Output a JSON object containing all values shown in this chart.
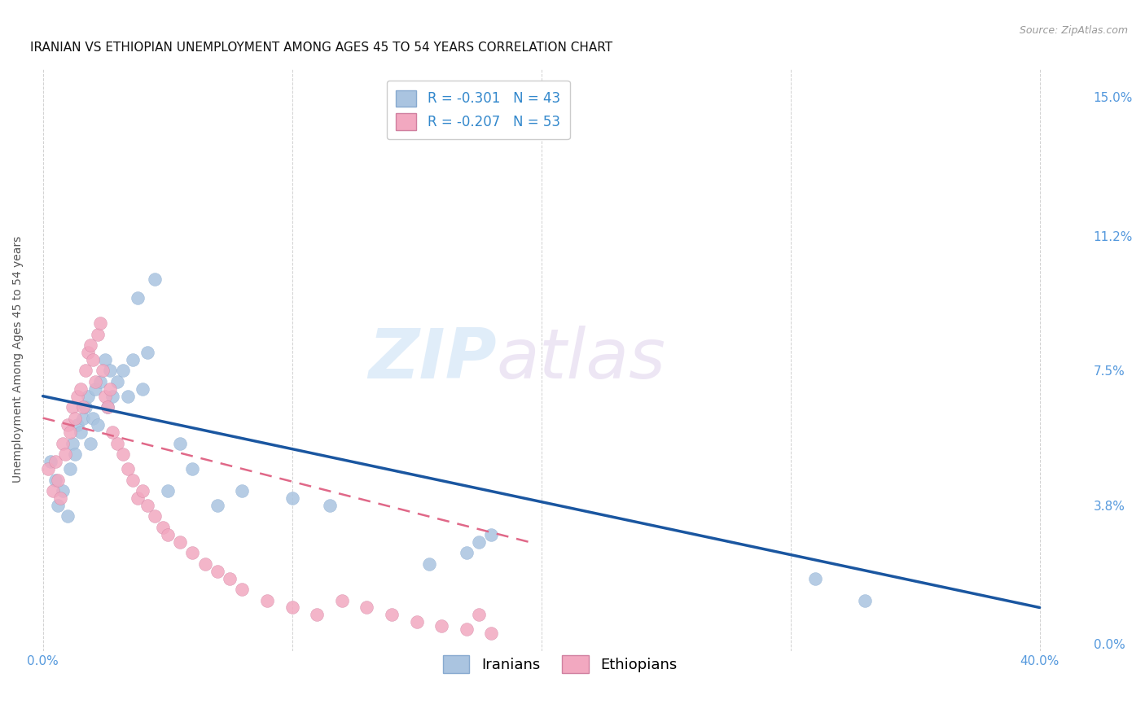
{
  "title": "IRANIAN VS ETHIOPIAN UNEMPLOYMENT AMONG AGES 45 TO 54 YEARS CORRELATION CHART",
  "source": "Source: ZipAtlas.com",
  "ylabel": "Unemployment Among Ages 45 to 54 years",
  "xlabel_ticks": [
    "0.0%",
    "",
    "",
    "",
    "40.0%"
  ],
  "xlabel_vals": [
    0.0,
    0.1,
    0.2,
    0.3,
    0.4
  ],
  "ylabel_ticks": [
    "0.0%",
    "3.8%",
    "7.5%",
    "11.2%",
    "15.0%"
  ],
  "ylabel_vals": [
    0.0,
    0.038,
    0.075,
    0.112,
    0.15
  ],
  "xlim": [
    -0.005,
    0.42
  ],
  "ylim": [
    -0.002,
    0.158
  ],
  "iranian_R": "-0.301",
  "iranian_N": "43",
  "ethiopian_R": "-0.207",
  "ethiopian_N": "53",
  "iranian_color": "#aac4e0",
  "ethiopian_color": "#f2a8c0",
  "iranian_line_color": "#1a56a0",
  "ethiopian_line_color": "#e06888",
  "watermark_zip": "ZIP",
  "watermark_atlas": "atlas",
  "iranians_x": [
    0.003,
    0.005,
    0.006,
    0.008,
    0.01,
    0.011,
    0.012,
    0.013,
    0.014,
    0.015,
    0.016,
    0.017,
    0.018,
    0.019,
    0.02,
    0.021,
    0.022,
    0.023,
    0.025,
    0.026,
    0.027,
    0.028,
    0.03,
    0.032,
    0.034,
    0.036,
    0.038,
    0.04,
    0.042,
    0.045,
    0.05,
    0.055,
    0.06,
    0.07,
    0.08,
    0.1,
    0.115,
    0.155,
    0.17,
    0.175,
    0.18,
    0.31,
    0.33
  ],
  "iranians_y": [
    0.05,
    0.045,
    0.038,
    0.042,
    0.035,
    0.048,
    0.055,
    0.052,
    0.06,
    0.058,
    0.062,
    0.065,
    0.068,
    0.055,
    0.062,
    0.07,
    0.06,
    0.072,
    0.078,
    0.065,
    0.075,
    0.068,
    0.072,
    0.075,
    0.068,
    0.078,
    0.095,
    0.07,
    0.08,
    0.1,
    0.042,
    0.055,
    0.048,
    0.038,
    0.042,
    0.04,
    0.038,
    0.022,
    0.025,
    0.028,
    0.03,
    0.018,
    0.012
  ],
  "ethiopians_x": [
    0.002,
    0.004,
    0.005,
    0.006,
    0.007,
    0.008,
    0.009,
    0.01,
    0.011,
    0.012,
    0.013,
    0.014,
    0.015,
    0.016,
    0.017,
    0.018,
    0.019,
    0.02,
    0.021,
    0.022,
    0.023,
    0.024,
    0.025,
    0.026,
    0.027,
    0.028,
    0.03,
    0.032,
    0.034,
    0.036,
    0.038,
    0.04,
    0.042,
    0.045,
    0.048,
    0.05,
    0.055,
    0.06,
    0.065,
    0.07,
    0.075,
    0.08,
    0.09,
    0.1,
    0.11,
    0.12,
    0.13,
    0.14,
    0.15,
    0.16,
    0.17,
    0.175,
    0.18
  ],
  "ethiopians_y": [
    0.048,
    0.042,
    0.05,
    0.045,
    0.04,
    0.055,
    0.052,
    0.06,
    0.058,
    0.065,
    0.062,
    0.068,
    0.07,
    0.065,
    0.075,
    0.08,
    0.082,
    0.078,
    0.072,
    0.085,
    0.088,
    0.075,
    0.068,
    0.065,
    0.07,
    0.058,
    0.055,
    0.052,
    0.048,
    0.045,
    0.04,
    0.042,
    0.038,
    0.035,
    0.032,
    0.03,
    0.028,
    0.025,
    0.022,
    0.02,
    0.018,
    0.015,
    0.012,
    0.01,
    0.008,
    0.012,
    0.01,
    0.008,
    0.006,
    0.005,
    0.004,
    0.008,
    0.003
  ],
  "iranian_line_x0": 0.0,
  "iranian_line_y0": 0.068,
  "iranian_line_x1": 0.4,
  "iranian_line_y1": 0.01,
  "ethiopian_line_x0": 0.0,
  "ethiopian_line_y0": 0.062,
  "ethiopian_line_x1": 0.195,
  "ethiopian_line_y1": 0.028,
  "background_color": "#ffffff",
  "grid_color": "#cccccc",
  "title_fontsize": 11,
  "axis_label_fontsize": 10,
  "tick_fontsize": 11,
  "legend_fontsize": 12
}
